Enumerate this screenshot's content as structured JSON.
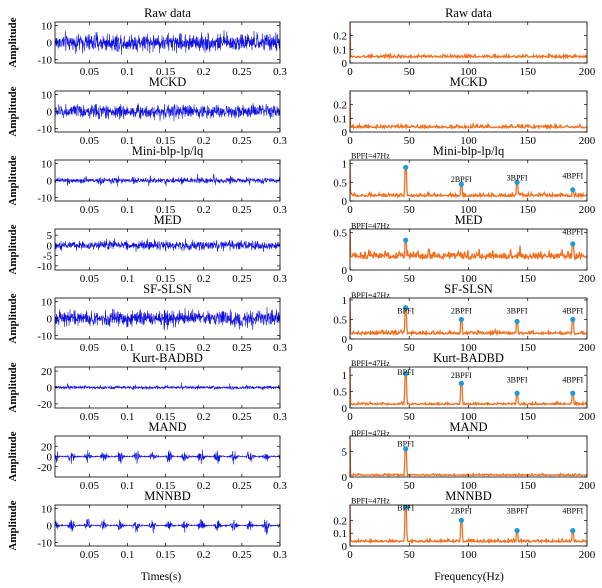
{
  "figure": {
    "xlabel_time": "Times(s)",
    "xlabel_freq": "Frequency(Hz)"
  },
  "colors": {
    "time_signal": "#1010e0",
    "spectrum": "#f07020",
    "marker": "#1e9ad6"
  },
  "chart_data": [
    {
      "type": "line",
      "title": "Raw data",
      "ylabel": "Amplitude",
      "xlim": [
        0.005,
        0.3
      ],
      "xticks": [
        0.05,
        0.1,
        0.15,
        0.2,
        0.25,
        0.3
      ],
      "ylim": [
        -12,
        12
      ],
      "yticks": [
        10,
        0,
        -10
      ],
      "style": "noise",
      "amplitude": 9
    },
    {
      "type": "line",
      "title": "Raw data",
      "ylabel": "",
      "xlim": [
        0,
        200
      ],
      "xticks": [
        0,
        50,
        100,
        150,
        200
      ],
      "ylim": [
        0,
        0.3
      ],
      "yticks": [
        0.2,
        0.1,
        0
      ],
      "style": "flat",
      "base": 0.04,
      "noise": 0.02,
      "peaks": [],
      "annotations": []
    },
    {
      "type": "line",
      "title": "MCKD",
      "ylabel": "Amplitude",
      "xlim": [
        0.005,
        0.3
      ],
      "xticks": [
        0.05,
        0.1,
        0.15,
        0.2,
        0.25,
        0.3
      ],
      "ylim": [
        -12,
        12
      ],
      "yticks": [
        10,
        0,
        -10
      ],
      "style": "noise",
      "amplitude": 7
    },
    {
      "type": "line",
      "title": "MCKD",
      "ylabel": "",
      "xlim": [
        0,
        200
      ],
      "xticks": [
        0,
        50,
        100,
        150,
        200
      ],
      "ylim": [
        0,
        0.3
      ],
      "yticks": [
        0.2,
        0.1,
        0
      ],
      "style": "flat",
      "base": 0.03,
      "noise": 0.02,
      "peaks": [],
      "annotations": []
    },
    {
      "type": "line",
      "title": "Mini-blp-lp/lq",
      "ylabel": "Amplitude",
      "xlim": [
        0.005,
        0.3
      ],
      "xticks": [
        0.05,
        0.1,
        0.15,
        0.2,
        0.25,
        0.3
      ],
      "ylim": [
        -12,
        12
      ],
      "yticks": [
        10,
        0,
        -10
      ],
      "style": "impulse",
      "amplitude": 6
    },
    {
      "type": "line",
      "title": "Mini-blp-lp/lq",
      "ylabel": "",
      "xlim": [
        0,
        200
      ],
      "xticks": [
        0,
        50,
        100,
        150,
        200
      ],
      "ylim": [
        0,
        1.1
      ],
      "yticks": [
        1,
        0.5,
        0
      ],
      "style": "peaks",
      "base": 0.12,
      "noise": 0.08,
      "peaks": [
        [
          47,
          0.9
        ],
        [
          94,
          0.45
        ],
        [
          141,
          0.5
        ],
        [
          188,
          0.3
        ]
      ],
      "annotations": [
        {
          "text": "BPFI=47Hz",
          "x": 0,
          "y": 1.08
        },
        {
          "text": "2BPFI",
          "x": 94,
          "y": 0.45
        },
        {
          "text": "3BPFI",
          "x": 141,
          "y": 0.5
        },
        {
          "text": "4BPFI",
          "x": 188,
          "y": 0.55
        }
      ]
    },
    {
      "type": "line",
      "title": "MED",
      "ylabel": "Amplitude",
      "xlim": [
        0.005,
        0.3
      ],
      "xticks": [
        0.05,
        0.1,
        0.15,
        0.2,
        0.25,
        0.3
      ],
      "ylim": [
        -12,
        8
      ],
      "yticks": [
        5,
        0,
        -5,
        -10
      ],
      "style": "noise",
      "amplitude": 4
    },
    {
      "type": "line",
      "title": "MED",
      "ylabel": "",
      "xlim": [
        0,
        200
      ],
      "xticks": [
        0,
        50,
        100,
        150,
        200
      ],
      "ylim": [
        0,
        0.55
      ],
      "yticks": [
        0.5,
        0
      ],
      "style": "peaks",
      "base": 0.15,
      "noise": 0.1,
      "peaks": [
        [
          47,
          0.4
        ],
        [
          188,
          0.35
        ]
      ],
      "annotations": [
        {
          "text": "BPFI=47Hz",
          "x": 0,
          "y": 0.53
        },
        {
          "text": "4BPFI",
          "x": 188,
          "y": 0.45
        }
      ]
    },
    {
      "type": "line",
      "title": "SF-SLSN",
      "ylabel": "Amplitude",
      "xlim": [
        0.005,
        0.3
      ],
      "xticks": [
        0.05,
        0.1,
        0.15,
        0.2,
        0.25,
        0.3
      ],
      "ylim": [
        -12,
        12
      ],
      "yticks": [
        10,
        0,
        -10
      ],
      "style": "noise",
      "amplitude": 8
    },
    {
      "type": "line",
      "title": "SF-SLSN",
      "ylabel": "",
      "xlim": [
        0,
        200
      ],
      "xticks": [
        0,
        50,
        100,
        150,
        200
      ],
      "ylim": [
        0,
        1.05
      ],
      "yticks": [
        1,
        0.5,
        0
      ],
      "style": "peaks",
      "base": 0.12,
      "noise": 0.08,
      "peaks": [
        [
          47,
          0.8
        ],
        [
          94,
          0.5
        ],
        [
          141,
          0.45
        ],
        [
          188,
          0.5
        ]
      ],
      "annotations": [
        {
          "text": "BPFI=47Hz",
          "x": 0,
          "y": 1.0
        },
        {
          "text": "BPFI",
          "x": 47,
          "y": 0.6
        },
        {
          "text": "2BPFI",
          "x": 94,
          "y": 0.6
        },
        {
          "text": "3BPFI",
          "x": 141,
          "y": 0.6
        },
        {
          "text": "4BPFI",
          "x": 188,
          "y": 0.6
        }
      ]
    },
    {
      "type": "line",
      "title": "Kurt-BADBD",
      "ylabel": "Amplitude",
      "xlim": [
        0.005,
        0.3
      ],
      "xticks": [
        0.05,
        0.1,
        0.15,
        0.2,
        0.25,
        0.3
      ],
      "ylim": [
        -25,
        25
      ],
      "yticks": [
        20,
        0,
        -20
      ],
      "style": "impulse",
      "amplitude": 7
    },
    {
      "type": "line",
      "title": "Kurt-BADBD",
      "ylabel": "",
      "xlim": [
        0,
        200
      ],
      "xticks": [
        0,
        50,
        100,
        150,
        200
      ],
      "ylim": [
        0,
        1.25
      ],
      "yticks": [
        1,
        0.5,
        0
      ],
      "style": "peaks",
      "base": 0.1,
      "noise": 0.06,
      "peaks": [
        [
          47,
          1.05
        ],
        [
          94,
          0.75
        ],
        [
          141,
          0.45
        ],
        [
          188,
          0.45
        ]
      ],
      "annotations": [
        {
          "text": "BPFI=47Hz",
          "x": 0,
          "y": 1.22
        },
        {
          "text": "BPFI",
          "x": 47,
          "y": 0.95
        },
        {
          "text": "2BPFI",
          "x": 94,
          "y": 0.85
        },
        {
          "text": "3BPFI",
          "x": 141,
          "y": 0.72
        },
        {
          "text": "4BPFI",
          "x": 188,
          "y": 0.72
        }
      ]
    },
    {
      "type": "line",
      "title": "MAND",
      "ylabel": "Amplitude",
      "xlim": [
        0.005,
        0.3
      ],
      "xticks": [
        0.05,
        0.1,
        0.15,
        0.2,
        0.25,
        0.3
      ],
      "ylim": [
        -40,
        40
      ],
      "yticks": [
        20,
        0,
        -20
      ],
      "style": "burst",
      "amplitude": 25
    },
    {
      "type": "line",
      "title": "MAND",
      "ylabel": "",
      "xlim": [
        0,
        200
      ],
      "xticks": [
        0,
        50,
        100,
        150,
        200
      ],
      "ylim": [
        0,
        8
      ],
      "yticks": [
        5,
        0
      ],
      "style": "peaks",
      "base": 0.3,
      "noise": 0.25,
      "peaks": [
        [
          47,
          5.5
        ]
      ],
      "annotations": [
        {
          "text": "BPFI=47Hz",
          "x": 0,
          "y": 7.6
        },
        {
          "text": "BPFI",
          "x": 47,
          "y": 5.6
        }
      ]
    },
    {
      "type": "line",
      "title": "MNNBD",
      "ylabel": "Amplitude",
      "xlim": [
        0.005,
        0.3
      ],
      "xticks": [
        0.05,
        0.1,
        0.15,
        0.2,
        0.25,
        0.3
      ],
      "ylim": [
        -12,
        12
      ],
      "yticks": [
        10,
        0,
        -10
      ],
      "style": "burst",
      "amplitude": 7
    },
    {
      "type": "line",
      "title": "MNNBD",
      "ylabel": "",
      "xlim": [
        0,
        200
      ],
      "xticks": [
        0,
        50,
        100,
        150,
        200
      ],
      "ylim": [
        0,
        0.32
      ],
      "yticks": [
        0.2,
        0.1,
        0
      ],
      "style": "peaks",
      "base": 0.03,
      "noise": 0.02,
      "peaks": [
        [
          47,
          0.3
        ],
        [
          94,
          0.2
        ],
        [
          141,
          0.12
        ],
        [
          188,
          0.12
        ]
      ],
      "annotations": [
        {
          "text": "BPFI=47Hz",
          "x": 0,
          "y": 0.315
        },
        {
          "text": "BPFI",
          "x": 47,
          "y": 0.26
        },
        {
          "text": "2BPFI",
          "x": 94,
          "y": 0.24
        },
        {
          "text": "3BPFI",
          "x": 141,
          "y": 0.24
        },
        {
          "text": "4BPFI",
          "x": 188,
          "y": 0.24
        }
      ]
    }
  ]
}
